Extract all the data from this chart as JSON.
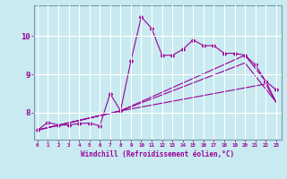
{
  "title": "",
  "xlabel": "Windchill (Refroidissement éolien,°C)",
  "background_color": "#c8eaf0",
  "grid_color": "#ffffff",
  "line_color": "#990099",
  "x_ticks": [
    0,
    1,
    2,
    3,
    4,
    5,
    6,
    7,
    8,
    9,
    10,
    11,
    12,
    13,
    14,
    15,
    16,
    17,
    18,
    19,
    20,
    21,
    22,
    23
  ],
  "y_ticks": [
    8,
    9,
    10
  ],
  "ylim": [
    7.3,
    10.8
  ],
  "xlim": [
    -0.3,
    23.5
  ],
  "series1_x": [
    0,
    1,
    2,
    3,
    4,
    5,
    6,
    7,
    8,
    9,
    10,
    11,
    12,
    13,
    14,
    15,
    16,
    17,
    18,
    19,
    20,
    21,
    22,
    23
  ],
  "series1_y": [
    7.55,
    7.75,
    7.68,
    7.68,
    7.72,
    7.73,
    7.66,
    8.5,
    8.05,
    9.35,
    10.5,
    10.2,
    9.5,
    9.5,
    9.65,
    9.9,
    9.75,
    9.75,
    9.55,
    9.55,
    9.5,
    9.25,
    8.82,
    8.6
  ],
  "series2_x": [
    0,
    8,
    20,
    22,
    23
  ],
  "series2_y": [
    7.55,
    8.05,
    9.5,
    8.82,
    8.28
  ],
  "series3_x": [
    0,
    8,
    20,
    23
  ],
  "series3_y": [
    7.55,
    8.05,
    9.3,
    8.28
  ],
  "series4_x": [
    0,
    8,
    22,
    23
  ],
  "series4_y": [
    7.55,
    8.05,
    8.75,
    8.28
  ]
}
